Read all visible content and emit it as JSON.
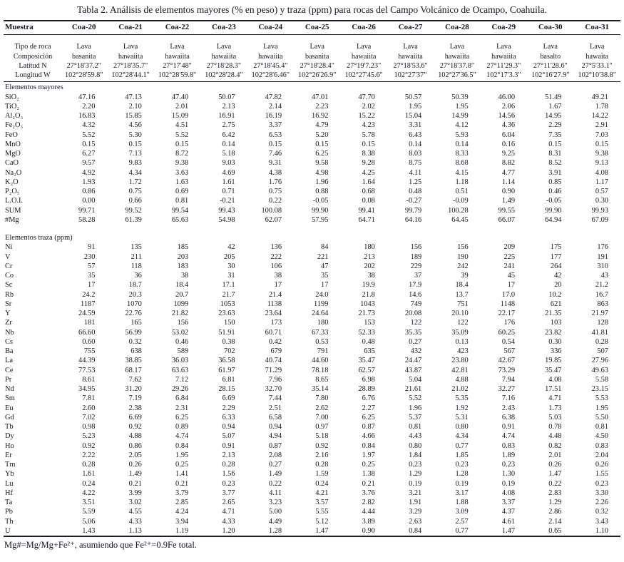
{
  "title": "Tabla 2. Análisis de elementos mayores (% en peso) y traza (ppm) para rocas del Campo Volcánico de Ocampo, Coahuila.",
  "footnote": "Mg#=Mg/Mg+Fe²⁺, asumiendo que Fe²⁺=0.9Fe total.",
  "table": {
    "sample_header_label": "Muestra",
    "samples": [
      "Coa-20",
      "Coa-21",
      "Coa-22",
      "Coa-23",
      "Coa-24",
      "Coa-25",
      "Coa-26",
      "Coa-27",
      "Coa-28",
      "Coa-29",
      "Coa-30",
      "Coa-31"
    ],
    "info_rows": [
      {
        "label": "Tipo de roca",
        "values": [
          "Lava",
          "Lava",
          "Lava",
          "Lava",
          "Lava",
          "Lava",
          "Lava",
          "Lava",
          "Lava",
          "Lava",
          "Lava",
          "Lava"
        ]
      },
      {
        "label": "Composición",
        "values": [
          "basanita",
          "hawaiita",
          "hawaiita",
          "hawaiita",
          "hawaiita",
          "basanita",
          "hawaiita",
          "hawaiita",
          "hawaiita",
          "hawaiita",
          "basalto",
          "hawaita"
        ]
      },
      {
        "label": "Latitud N",
        "values": [
          "27°18'37.2\"",
          "27°18'35.7\"",
          "27°17'48\"",
          "27°18'28.3\"",
          "27°18'45.4\"",
          "27°18'28.4\"",
          "27°19'7.23\"",
          "27°18'53.6\"",
          "27°18'37.8\"",
          "27°11'29.3\"",
          "27°11'28.6\"",
          "27°5'33.1\""
        ]
      },
      {
        "label": "Longitud W",
        "values": [
          "102°28'59.8\"",
          "102°28'44.1\"",
          "102°28'59.8\"",
          "102°28'28.4\"",
          "102°28'6.46\"",
          "102°26'26.9\"",
          "102°27'45.6\"",
          "102°27'37\"",
          "102°27'36.5\"",
          "102°17'3.3\"",
          "102°16'27.9\"",
          "102°10'38.8\""
        ]
      }
    ],
    "sections": [
      {
        "label": "Elementos mayores",
        "rows": [
          {
            "label": "SiO₂",
            "values": [
              "47.16",
              "47.13",
              "47.40",
              "50.07",
              "47.82",
              "47.01",
              "47.70",
              "50.57",
              "50.39",
              "46.00",
              "51.49",
              "49.21"
            ]
          },
          {
            "label": "TiO₂",
            "values": [
              "2.20",
              "2.10",
              "2.01",
              "2.13",
              "2.14",
              "2.23",
              "2.02",
              "1.95",
              "1.95",
              "2.06",
              "1.67",
              "1.78"
            ]
          },
          {
            "label": "Al₂O₃",
            "values": [
              "16.83",
              "15.85",
              "15.09",
              "16.91",
              "16.19",
              "16.92",
              "15.22",
              "15.04",
              "14.99",
              "14.56",
              "14.95",
              "14.22"
            ]
          },
          {
            "label": "Fe₂O₃",
            "values": [
              "4.32",
              "4.56",
              "4.51",
              "2.75",
              "3.37",
              "4.79",
              "4.23",
              "3.31",
              "4.12",
              "4.36",
              "2.29",
              "2.91"
            ]
          },
          {
            "label": "FeO",
            "values": [
              "5.52",
              "5.30",
              "5.52",
              "6.42",
              "6.53",
              "5.20",
              "5.78",
              "6.43",
              "5.93",
              "6.04",
              "7.35",
              "7.03"
            ]
          },
          {
            "label": "MnO",
            "values": [
              "0.15",
              "0.15",
              "0.15",
              "0.14",
              "0.15",
              "0.15",
              "0.15",
              "0.14",
              "0.14",
              "0.16",
              "0.15",
              "0.15"
            ]
          },
          {
            "label": "MgO",
            "values": [
              "6.27",
              "7.13",
              "8.72",
              "5.18",
              "7.46",
              "6.25",
              "8.38",
              "8.03",
              "8.33",
              "9.25",
              "8.31",
              "9.38"
            ]
          },
          {
            "label": "CaO",
            "values": [
              "9.57",
              "9.83",
              "9.38",
              "9.03",
              "9.31",
              "9.58",
              "9.28",
              "8.75",
              "8.68",
              "8.82",
              "8.52",
              "9.13"
            ]
          },
          {
            "label": "Na₂O",
            "values": [
              "4.92",
              "4.34",
              "3.63",
              "4.69",
              "4.38",
              "4.98",
              "4.25",
              "4.11",
              "4.15",
              "4.77",
              "3.91",
              "4.08"
            ]
          },
          {
            "label": "K₂O",
            "values": [
              "1.93",
              "1.72",
              "1.63",
              "1.61",
              "1.76",
              "1.96",
              "1.64",
              "1.25",
              "1.18",
              "1.14",
              "0.85",
              "1.17"
            ]
          },
          {
            "label": "P₂O₅",
            "values": [
              "0.86",
              "0.75",
              "0.69",
              "0.71",
              "0.75",
              "0.88",
              "0.68",
              "0.48",
              "0.51",
              "0.90",
              "0.46",
              "0.57"
            ]
          },
          {
            "label": "L.O.I.",
            "values": [
              "0.00",
              "0.66",
              "0.81",
              "-0.21",
              "0.22",
              "-0.05",
              "0.08",
              "-0.27",
              "-0.09",
              "1.49",
              "-0.05",
              "0.30"
            ]
          },
          {
            "label": "SUM",
            "values": [
              "99.71",
              "99.52",
              "99.54",
              "99.43",
              "100.08",
              "99.90",
              "99.41",
              "99.79",
              "100.28",
              "99.55",
              "99.90",
              "99.93"
            ]
          },
          {
            "label": "#Mg",
            "values": [
              "58.28",
              "61.39",
              "65.63",
              "54.98",
              "62.07",
              "57.95",
              "64.71",
              "64.16",
              "64.45",
              "66.07",
              "64.94",
              "67.09"
            ]
          }
        ]
      },
      {
        "label": "Elementos traza (ppm)",
        "rows": [
          {
            "label": "Ni",
            "values": [
              "91",
              "135",
              "185",
              "42",
              "136",
              "84",
              "180",
              "156",
              "156",
              "209",
              "175",
              "176"
            ]
          },
          {
            "label": "V",
            "values": [
              "230",
              "211",
              "203",
              "205",
              "222",
              "221",
              "213",
              "189",
              "190",
              "225",
              "177",
              "191"
            ]
          },
          {
            "label": "Cr",
            "values": [
              "57",
              "118",
              "183",
              "30",
              "106",
              "47",
              "202",
              "229",
              "242",
              "241",
              "264",
              "310"
            ]
          },
          {
            "label": "Co",
            "values": [
              "35",
              "36",
              "38",
              "31",
              "38",
              "35",
              "38",
              "37",
              "39",
              "45",
              "42",
              "43"
            ]
          },
          {
            "label": "Sc",
            "values": [
              "17",
              "18.7",
              "18.4",
              "17.1",
              "17",
              "17",
              "19.9",
              "17.9",
              "18.4",
              "17",
              "20",
              "21.2"
            ]
          },
          {
            "label": "Rb",
            "values": [
              "24.2",
              "20.3",
              "20.7",
              "21.7",
              "21.4",
              "24.0",
              "21.8",
              "14.6",
              "13.7",
              "17.0",
              "10.2",
              "16.7"
            ]
          },
          {
            "label": "Sr",
            "values": [
              "1187",
              "1070",
              "1099",
              "1053",
              "1138",
              "1199",
              "1043",
              "749",
              "751",
              "1148",
              "621",
              "863"
            ]
          },
          {
            "label": "Y",
            "values": [
              "24.59",
              "22.76",
              "21.82",
              "23.63",
              "23.64",
              "24.64",
              "21.73",
              "20.08",
              "20.10",
              "22.17",
              "21.35",
              "21.97"
            ]
          },
          {
            "label": "Zr",
            "values": [
              "181",
              "165",
              "156",
              "150",
              "173",
              "180",
              "153",
              "122",
              "122",
              "176",
              "103",
              "128"
            ]
          },
          {
            "label": "Nb",
            "values": [
              "66.60",
              "56.99",
              "53.02",
              "51.91",
              "60.71",
              "67.33",
              "52.33",
              "35.35",
              "35.09",
              "60.25",
              "23.82",
              "41.81"
            ]
          },
          {
            "label": "Cs",
            "values": [
              "0.60",
              "0.32",
              "0.46",
              "0.38",
              "0.42",
              "0.53",
              "0.48",
              "0.27",
              "0.13",
              "0.54",
              "0.30",
              "0.28"
            ]
          },
          {
            "label": "Ba",
            "values": [
              "755",
              "638",
              "589",
              "702",
              "679",
              "791",
              "635",
              "432",
              "423",
              "567",
              "336",
              "507"
            ]
          },
          {
            "label": "La",
            "values": [
              "44.39",
              "38.85",
              "36.03",
              "36.58",
              "40.74",
              "44.60",
              "35.47",
              "24.47",
              "23.80",
              "42.67",
              "19.85",
              "27.96"
            ]
          },
          {
            "label": "Ce",
            "values": [
              "77.53",
              "68.17",
              "63.63",
              "61.97",
              "71.29",
              "78.18",
              "62.57",
              "43.87",
              "42.81",
              "73.29",
              "35.47",
              "49.63"
            ]
          },
          {
            "label": "Pr",
            "values": [
              "8.61",
              "7.62",
              "7.12",
              "6.81",
              "7.96",
              "8.65",
              "6.98",
              "5.04",
              "4.88",
              "7.94",
              "4.08",
              "5.58"
            ]
          },
          {
            "label": "Nd",
            "values": [
              "34.95",
              "31.20",
              "29.26",
              "28.15",
              "32.70",
              "35.14",
              "28.89",
              "21.61",
              "21.02",
              "32.27",
              "17.51",
              "23.15"
            ]
          },
          {
            "label": "Sm",
            "values": [
              "7.81",
              "7.19",
              "6.84",
              "6.69",
              "7.44",
              "7.80",
              "6.76",
              "5.52",
              "5.35",
              "7.16",
              "4.71",
              "5.53"
            ]
          },
          {
            "label": "Eu",
            "values": [
              "2.60",
              "2.38",
              "2.31",
              "2.29",
              "2.51",
              "2.62",
              "2.27",
              "1.96",
              "1.92",
              "2.43",
              "1.73",
              "1.95"
            ]
          },
          {
            "label": "Gd",
            "values": [
              "7.02",
              "6.69",
              "6.25",
              "6.33",
              "6.58",
              "7.00",
              "6.25",
              "5.37",
              "5.31",
              "6.38",
              "5.03",
              "5.50"
            ]
          },
          {
            "label": "Tb",
            "values": [
              "0.98",
              "0.92",
              "0.89",
              "0.94",
              "0.94",
              "0.97",
              "0.87",
              "0.81",
              "0.80",
              "0.91",
              "0.78",
              "0.81"
            ]
          },
          {
            "label": "Dy",
            "values": [
              "5.23",
              "4.88",
              "4.74",
              "5.07",
              "4.94",
              "5.18",
              "4.66",
              "4.43",
              "4.34",
              "4.74",
              "4.48",
              "4.50"
            ]
          },
          {
            "label": "Ho",
            "values": [
              "0.92",
              "0.86",
              "0.84",
              "0.91",
              "0.87",
              "0.92",
              "0.84",
              "0.80",
              "0.77",
              "0.83",
              "0.82",
              "0.83"
            ]
          },
          {
            "label": "Er",
            "values": [
              "2.22",
              "2.05",
              "1.95",
              "2.13",
              "2.08",
              "2.16",
              "1.97",
              "1.84",
              "1.85",
              "1.89",
              "2.01",
              "2.04"
            ]
          },
          {
            "label": "Tm",
            "values": [
              "0.28",
              "0.26",
              "0.25",
              "0.28",
              "0.27",
              "0.28",
              "0.25",
              "0.23",
              "0.23",
              "0.23",
              "0.26",
              "0.26"
            ]
          },
          {
            "label": "Yb",
            "values": [
              "1.61",
              "1.49",
              "1.41",
              "1.56",
              "1.49",
              "1.59",
              "1.38",
              "1.29",
              "1.28",
              "1.30",
              "1.47",
              "1.55"
            ]
          },
          {
            "label": "Lu",
            "values": [
              "0.24",
              "0.21",
              "0.21",
              "0.23",
              "0.22",
              "0.24",
              "0.21",
              "0.19",
              "0.19",
              "0.19",
              "0.22",
              "0.23"
            ]
          },
          {
            "label": "Hf",
            "values": [
              "4.22",
              "3.99",
              "3.79",
              "3.77",
              "4.11",
              "4.21",
              "3.76",
              "3.21",
              "3.17",
              "4.08",
              "2.83",
              "3.30"
            ]
          },
          {
            "label": "Ta",
            "values": [
              "3.51",
              "3.02",
              "2.85",
              "2.65",
              "3.23",
              "3.57",
              "2.82",
              "1.91",
              "1.88",
              "3.37",
              "1.29",
              "2.26"
            ]
          },
          {
            "label": "Pb",
            "values": [
              "5.59",
              "4.55",
              "4.24",
              "4.71",
              "5.00",
              "5.55",
              "4.44",
              "3.29",
              "3.09",
              "4.37",
              "2.86",
              "0.32"
            ]
          },
          {
            "label": "Th",
            "values": [
              "5.06",
              "4.33",
              "3.94",
              "4.33",
              "4.49",
              "5.12",
              "3.89",
              "2.63",
              "2.57",
              "4.61",
              "2.14",
              "3.43"
            ]
          },
          {
            "label": "U",
            "values": [
              "1.43",
              "1.13",
              "1.19",
              "1.20",
              "1.28",
              "1.47",
              "0.90",
              "0.84",
              "0.77",
              "1.47",
              "0.65",
              "1.10"
            ]
          }
        ]
      }
    ]
  }
}
